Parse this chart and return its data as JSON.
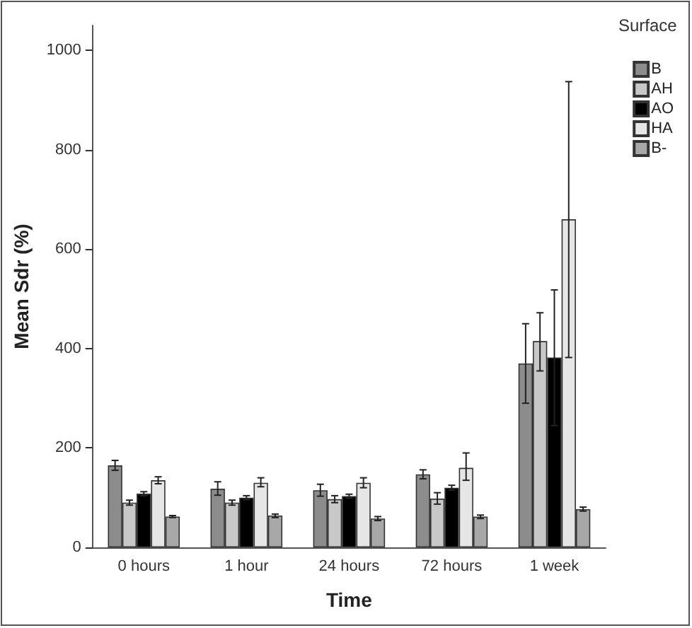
{
  "chart_data": {
    "type": "bar",
    "xlabel": "Time",
    "ylabel": "Mean Sdr (%)",
    "legend_title": "Surface",
    "legend": "right",
    "grid": false,
    "categories": [
      "0 hours",
      "1 hour",
      "24 hours",
      "72 hours",
      "1 week"
    ],
    "ylim": [
      0,
      1050
    ],
    "yticks": [
      0,
      200,
      400,
      600,
      800,
      1000
    ],
    "series": [
      {
        "name": "B",
        "color": "#8c8c8c",
        "values": [
          165,
          118,
          115,
          147,
          370
        ],
        "errors": [
          [
            155,
            175
          ],
          [
            105,
            132
          ],
          [
            103,
            127
          ],
          [
            138,
            156
          ],
          [
            290,
            450
          ]
        ]
      },
      {
        "name": "AH",
        "color": "#c8c8c8",
        "values": [
          90,
          90,
          97,
          98,
          415
        ],
        "errors": [
          [
            85,
            95
          ],
          [
            85,
            95
          ],
          [
            90,
            104
          ],
          [
            87,
            110
          ],
          [
            355,
            472
          ]
        ]
      },
      {
        "name": "AO",
        "color": "#000000",
        "values": [
          108,
          100,
          103,
          120,
          382
        ],
        "errors": [
          [
            104,
            112
          ],
          [
            96,
            104
          ],
          [
            99,
            107
          ],
          [
            115,
            125
          ],
          [
            245,
            518
          ]
        ]
      },
      {
        "name": "HA",
        "color": "#e6e6e6",
        "values": [
          135,
          130,
          130,
          160,
          660
        ],
        "errors": [
          [
            128,
            142
          ],
          [
            122,
            140
          ],
          [
            120,
            140
          ],
          [
            135,
            190
          ],
          [
            382,
            937
          ]
        ]
      },
      {
        "name": "B-",
        "color": "#a8a8a8",
        "values": [
          62,
          64,
          58,
          62,
          77
        ],
        "errors": [
          [
            60,
            64
          ],
          [
            60,
            67
          ],
          [
            54,
            62
          ],
          [
            58,
            65
          ],
          [
            73,
            81
          ]
        ]
      }
    ]
  }
}
